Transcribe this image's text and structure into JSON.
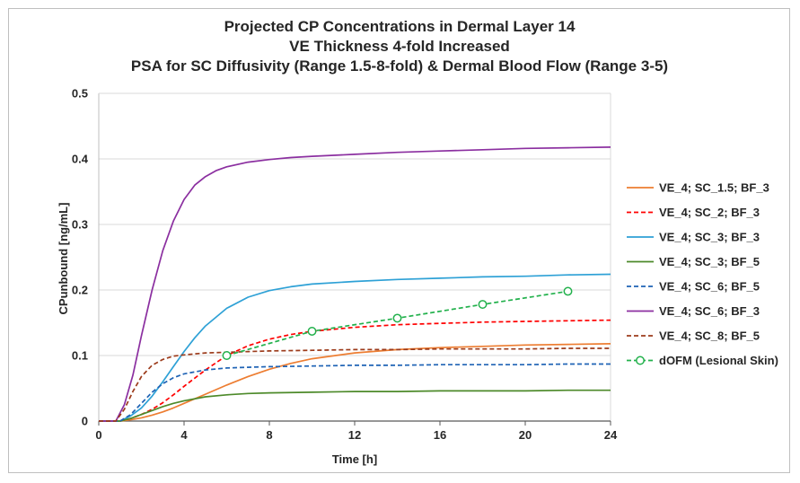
{
  "chart_data": {
    "type": "line",
    "title_lines": [
      "Projected CP Concentrations in Dermal Layer 14",
      "VE Thickness 4-fold Increased",
      "PSA for SC Diffusivity (Range 1.5-8-fold) & Dermal Blood Flow (Range 3-5)"
    ],
    "xlabel": "Time [h]",
    "ylabel": "CPunbound [ng/mL]",
    "xlim": [
      0,
      24
    ],
    "ylim": [
      0,
      0.5
    ],
    "xticks": [
      0,
      4,
      8,
      12,
      16,
      20,
      24
    ],
    "xtick_labels": [
      "0",
      "4",
      "8",
      "12",
      "16",
      "20",
      "24"
    ],
    "yticks": [
      0,
      0.1,
      0.2,
      0.3,
      0.4,
      0.5
    ],
    "ytick_labels": [
      "0",
      "0.1",
      "0.2",
      "0.3",
      "0.4",
      "0.5"
    ],
    "grid": "horizontal",
    "legend_position": "right",
    "series": [
      {
        "name": "VE_4; SC_1.5; BF_3",
        "color": "#ed7d31",
        "style": "solid",
        "x": [
          0,
          1,
          1.5,
          2,
          2.5,
          3,
          3.5,
          4,
          5,
          6,
          7,
          8,
          9,
          10,
          12,
          14,
          16,
          18,
          20,
          22,
          24
        ],
        "y": [
          0,
          0,
          0.002,
          0.005,
          0.009,
          0.014,
          0.02,
          0.027,
          0.041,
          0.055,
          0.068,
          0.079,
          0.088,
          0.095,
          0.104,
          0.109,
          0.112,
          0.114,
          0.116,
          0.117,
          0.118
        ]
      },
      {
        "name": "VE_4; SC_2; BF_3",
        "color": "#ff0000",
        "style": "dashed",
        "x": [
          0,
          1,
          1.5,
          2,
          2.5,
          3,
          3.5,
          4,
          5,
          6,
          7,
          8,
          9,
          10,
          12,
          14,
          16,
          18,
          20,
          22,
          24
        ],
        "y": [
          0,
          0,
          0.004,
          0.01,
          0.018,
          0.028,
          0.04,
          0.053,
          0.078,
          0.1,
          0.115,
          0.125,
          0.132,
          0.137,
          0.143,
          0.147,
          0.149,
          0.151,
          0.152,
          0.153,
          0.154
        ]
      },
      {
        "name": "VE_4; SC_3; BF_3",
        "color": "#2ea1d6",
        "style": "solid",
        "x": [
          0,
          1,
          1.5,
          2,
          2.5,
          3,
          3.5,
          4,
          4.5,
          5,
          6,
          7,
          8,
          9,
          10,
          12,
          14,
          16,
          18,
          20,
          22,
          24
        ],
        "y": [
          0,
          0,
          0.008,
          0.02,
          0.038,
          0.06,
          0.083,
          0.106,
          0.127,
          0.145,
          0.172,
          0.189,
          0.199,
          0.205,
          0.209,
          0.213,
          0.216,
          0.218,
          0.22,
          0.221,
          0.223,
          0.224
        ]
      },
      {
        "name": "VE_4; SC_3; BF_5",
        "color": "#4d8a2a",
        "style": "solid",
        "x": [
          0,
          1,
          1.5,
          2,
          2.5,
          3,
          3.5,
          4,
          5,
          6,
          7,
          8,
          10,
          12,
          14,
          16,
          18,
          20,
          22,
          24
        ],
        "y": [
          0,
          0,
          0.004,
          0.01,
          0.016,
          0.022,
          0.027,
          0.031,
          0.037,
          0.04,
          0.042,
          0.043,
          0.044,
          0.045,
          0.045,
          0.046,
          0.046,
          0.046,
          0.047,
          0.047
        ]
      },
      {
        "name": "VE_4; SC_6; BF_5",
        "color": "#1f63b5",
        "style": "dashed",
        "x": [
          0,
          1,
          1.5,
          2,
          2.5,
          3,
          3.5,
          4,
          5,
          6,
          7,
          8,
          10,
          12,
          14,
          16,
          18,
          20,
          22,
          24
        ],
        "y": [
          0,
          0,
          0.01,
          0.027,
          0.044,
          0.057,
          0.066,
          0.072,
          0.078,
          0.081,
          0.082,
          0.083,
          0.084,
          0.085,
          0.085,
          0.086,
          0.086,
          0.086,
          0.087,
          0.087
        ]
      },
      {
        "name": "VE_4; SC_6; BF_3",
        "color": "#8b2fa0",
        "style": "solid",
        "x": [
          0,
          0.8,
          1.2,
          1.6,
          2,
          2.5,
          3,
          3.5,
          4,
          4.5,
          5,
          5.5,
          6,
          7,
          8,
          9,
          10,
          12,
          14,
          16,
          18,
          20,
          22,
          24
        ],
        "y": [
          0,
          0,
          0.025,
          0.07,
          0.13,
          0.2,
          0.26,
          0.305,
          0.338,
          0.36,
          0.373,
          0.382,
          0.388,
          0.395,
          0.399,
          0.402,
          0.404,
          0.407,
          0.41,
          0.412,
          0.414,
          0.416,
          0.417,
          0.418
        ]
      },
      {
        "name": "VE_4; SC_8; BF_5",
        "color": "#9c3b1b",
        "style": "dashed",
        "x": [
          0,
          0.8,
          1.2,
          1.6,
          2,
          2.5,
          3,
          3.5,
          4,
          5,
          6,
          7,
          8,
          10,
          12,
          14,
          16,
          18,
          20,
          22,
          24
        ],
        "y": [
          0,
          0,
          0.018,
          0.045,
          0.068,
          0.085,
          0.094,
          0.099,
          0.101,
          0.104,
          0.105,
          0.106,
          0.107,
          0.108,
          0.109,
          0.109,
          0.11,
          0.11,
          0.11,
          0.111,
          0.111
        ]
      },
      {
        "name": "dOFM (Lesional Skin)",
        "color": "#22b14c",
        "style": "dashed-markers",
        "x": [
          6,
          10,
          14,
          18,
          22
        ],
        "y": [
          0.1,
          0.137,
          0.157,
          0.178,
          0.198
        ]
      }
    ]
  }
}
